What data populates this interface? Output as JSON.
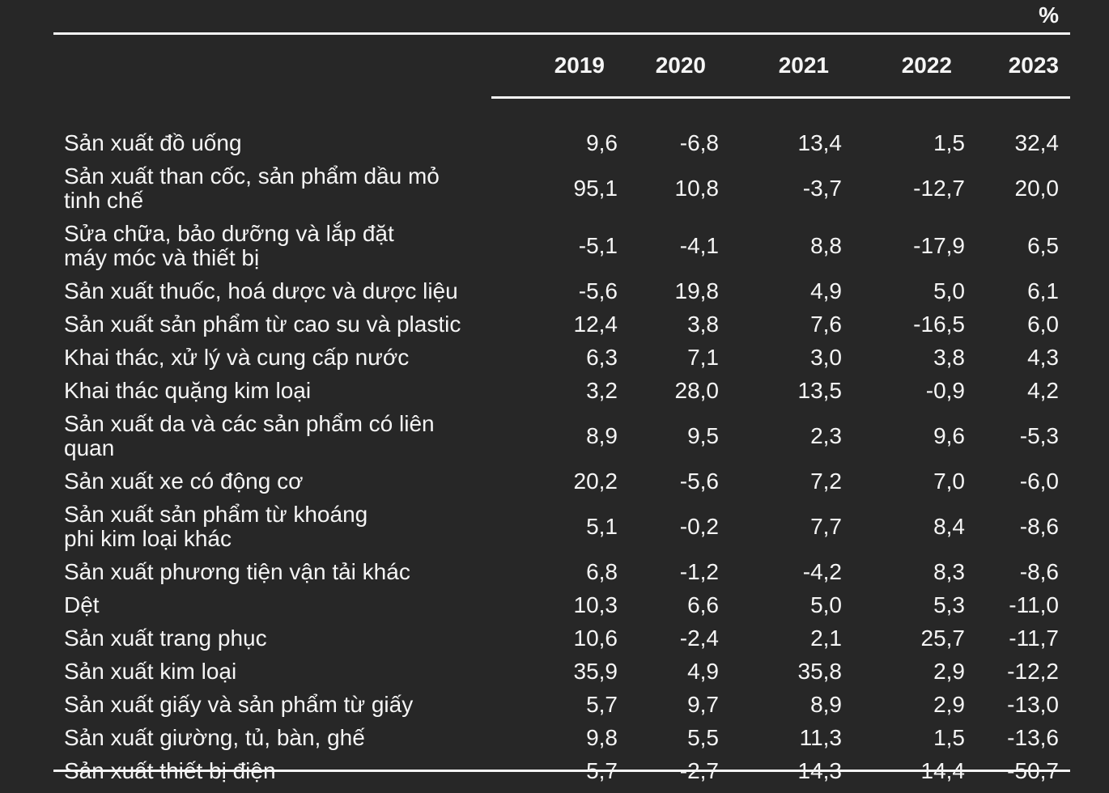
{
  "page": {
    "background_color": "#272727",
    "text_color": "#f5f5f5",
    "rule_color": "#f5f5f5"
  },
  "chart_data": {
    "type": "table",
    "title": "",
    "unit_label": "%",
    "columns": [
      "2019",
      "2020",
      "2021",
      "2022",
      "2023"
    ],
    "layout": {
      "grid": false,
      "legend": false,
      "number_alignment": "right",
      "decimal_separator": ",",
      "theme": "dark"
    },
    "rows": [
      {
        "label": "Sản xuất đồ uống",
        "values": [
          9.6,
          -6.8,
          13.4,
          1.5,
          32.4
        ],
        "display": [
          "9,6",
          "-6,8",
          "13,4",
          "1,5",
          "32,4"
        ]
      },
      {
        "label": "Sản xuất than cốc, sản phẩm dầu mỏ\ntinh chế",
        "values": [
          95.1,
          10.8,
          -3.7,
          -12.7,
          20.0
        ],
        "display": [
          "95,1",
          "10,8",
          "-3,7",
          "-12,7",
          "20,0"
        ]
      },
      {
        "label": "Sửa chữa, bảo dưỡng và lắp đặt\nmáy móc và thiết bị",
        "values": [
          -5.1,
          -4.1,
          8.8,
          -17.9,
          6.5
        ],
        "display": [
          "-5,1",
          "-4,1",
          "8,8",
          "-17,9",
          "6,5"
        ]
      },
      {
        "label": "Sản xuất thuốc, hoá dược và dược liệu",
        "values": [
          -5.6,
          19.8,
          4.9,
          5.0,
          6.1
        ],
        "display": [
          "-5,6",
          "19,8",
          "4,9",
          "5,0",
          "6,1"
        ]
      },
      {
        "label": "Sản xuất sản phẩm từ cao su và plastic",
        "values": [
          12.4,
          3.8,
          7.6,
          -16.5,
          6.0
        ],
        "display": [
          "12,4",
          "3,8",
          "7,6",
          "-16,5",
          "6,0"
        ]
      },
      {
        "label": "Khai thác, xử lý và cung cấp nước",
        "values": [
          6.3,
          7.1,
          3.0,
          3.8,
          4.3
        ],
        "display": [
          "6,3",
          "7,1",
          "3,0",
          "3,8",
          "4,3"
        ]
      },
      {
        "label": "Khai thác quặng kim loại",
        "values": [
          3.2,
          28.0,
          13.5,
          -0.9,
          4.2
        ],
        "display": [
          "3,2",
          "28,0",
          "13,5",
          "-0,9",
          "4,2"
        ]
      },
      {
        "label": "Sản xuất da và các sản phẩm có liên quan",
        "values": [
          8.9,
          9.5,
          2.3,
          9.6,
          -5.3
        ],
        "display": [
          "8,9",
          "9,5",
          "2,3",
          "9,6",
          "-5,3"
        ]
      },
      {
        "label": "Sản xuất xe có động cơ",
        "values": [
          20.2,
          -5.6,
          7.2,
          7.0,
          -6.0
        ],
        "display": [
          "20,2",
          "-5,6",
          "7,2",
          "7,0",
          "-6,0"
        ]
      },
      {
        "label": "Sản xuất sản phẩm từ khoáng\nphi kim loại khác",
        "values": [
          5.1,
          -0.2,
          7.7,
          8.4,
          -8.6
        ],
        "display": [
          "5,1",
          "-0,2",
          "7,7",
          "8,4",
          "-8,6"
        ]
      },
      {
        "label": "Sản xuất phương tiện vận tải khác",
        "values": [
          6.8,
          -1.2,
          -4.2,
          8.3,
          -8.6
        ],
        "display": [
          "6,8",
          "-1,2",
          "-4,2",
          "8,3",
          "-8,6"
        ]
      },
      {
        "label": "Dệt",
        "values": [
          10.3,
          6.6,
          5.0,
          5.3,
          -11.0
        ],
        "display": [
          "10,3",
          "6,6",
          "5,0",
          "5,3",
          "-11,0"
        ]
      },
      {
        "label": "Sản xuất trang phục",
        "values": [
          10.6,
          -2.4,
          2.1,
          25.7,
          -11.7
        ],
        "display": [
          "10,6",
          "-2,4",
          "2,1",
          "25,7",
          "-11,7"
        ]
      },
      {
        "label": "Sản xuất kim loại",
        "values": [
          35.9,
          4.9,
          35.8,
          2.9,
          -12.2
        ],
        "display": [
          "35,9",
          "4,9",
          "35,8",
          "2,9",
          "-12,2"
        ]
      },
      {
        "label": "Sản xuất giấy và sản phẩm từ giấy",
        "values": [
          5.7,
          9.7,
          8.9,
          2.9,
          -13.0
        ],
        "display": [
          "5,7",
          "9,7",
          "8,9",
          "2,9",
          "-13,0"
        ]
      },
      {
        "label": "Sản xuất giường, tủ, bàn, ghế",
        "values": [
          9.8,
          5.5,
          11.3,
          1.5,
          -13.6
        ],
        "display": [
          "9,8",
          "5,5",
          "11,3",
          "1,5",
          "-13,6"
        ]
      },
      {
        "label": "Sản xuất thiết bị điện",
        "values": [
          5.7,
          -2.7,
          14.3,
          14.4,
          -50.7
        ],
        "display": [
          "5,7",
          "-2,7",
          "14,3",
          "14,4",
          "-50,7"
        ]
      }
    ]
  }
}
